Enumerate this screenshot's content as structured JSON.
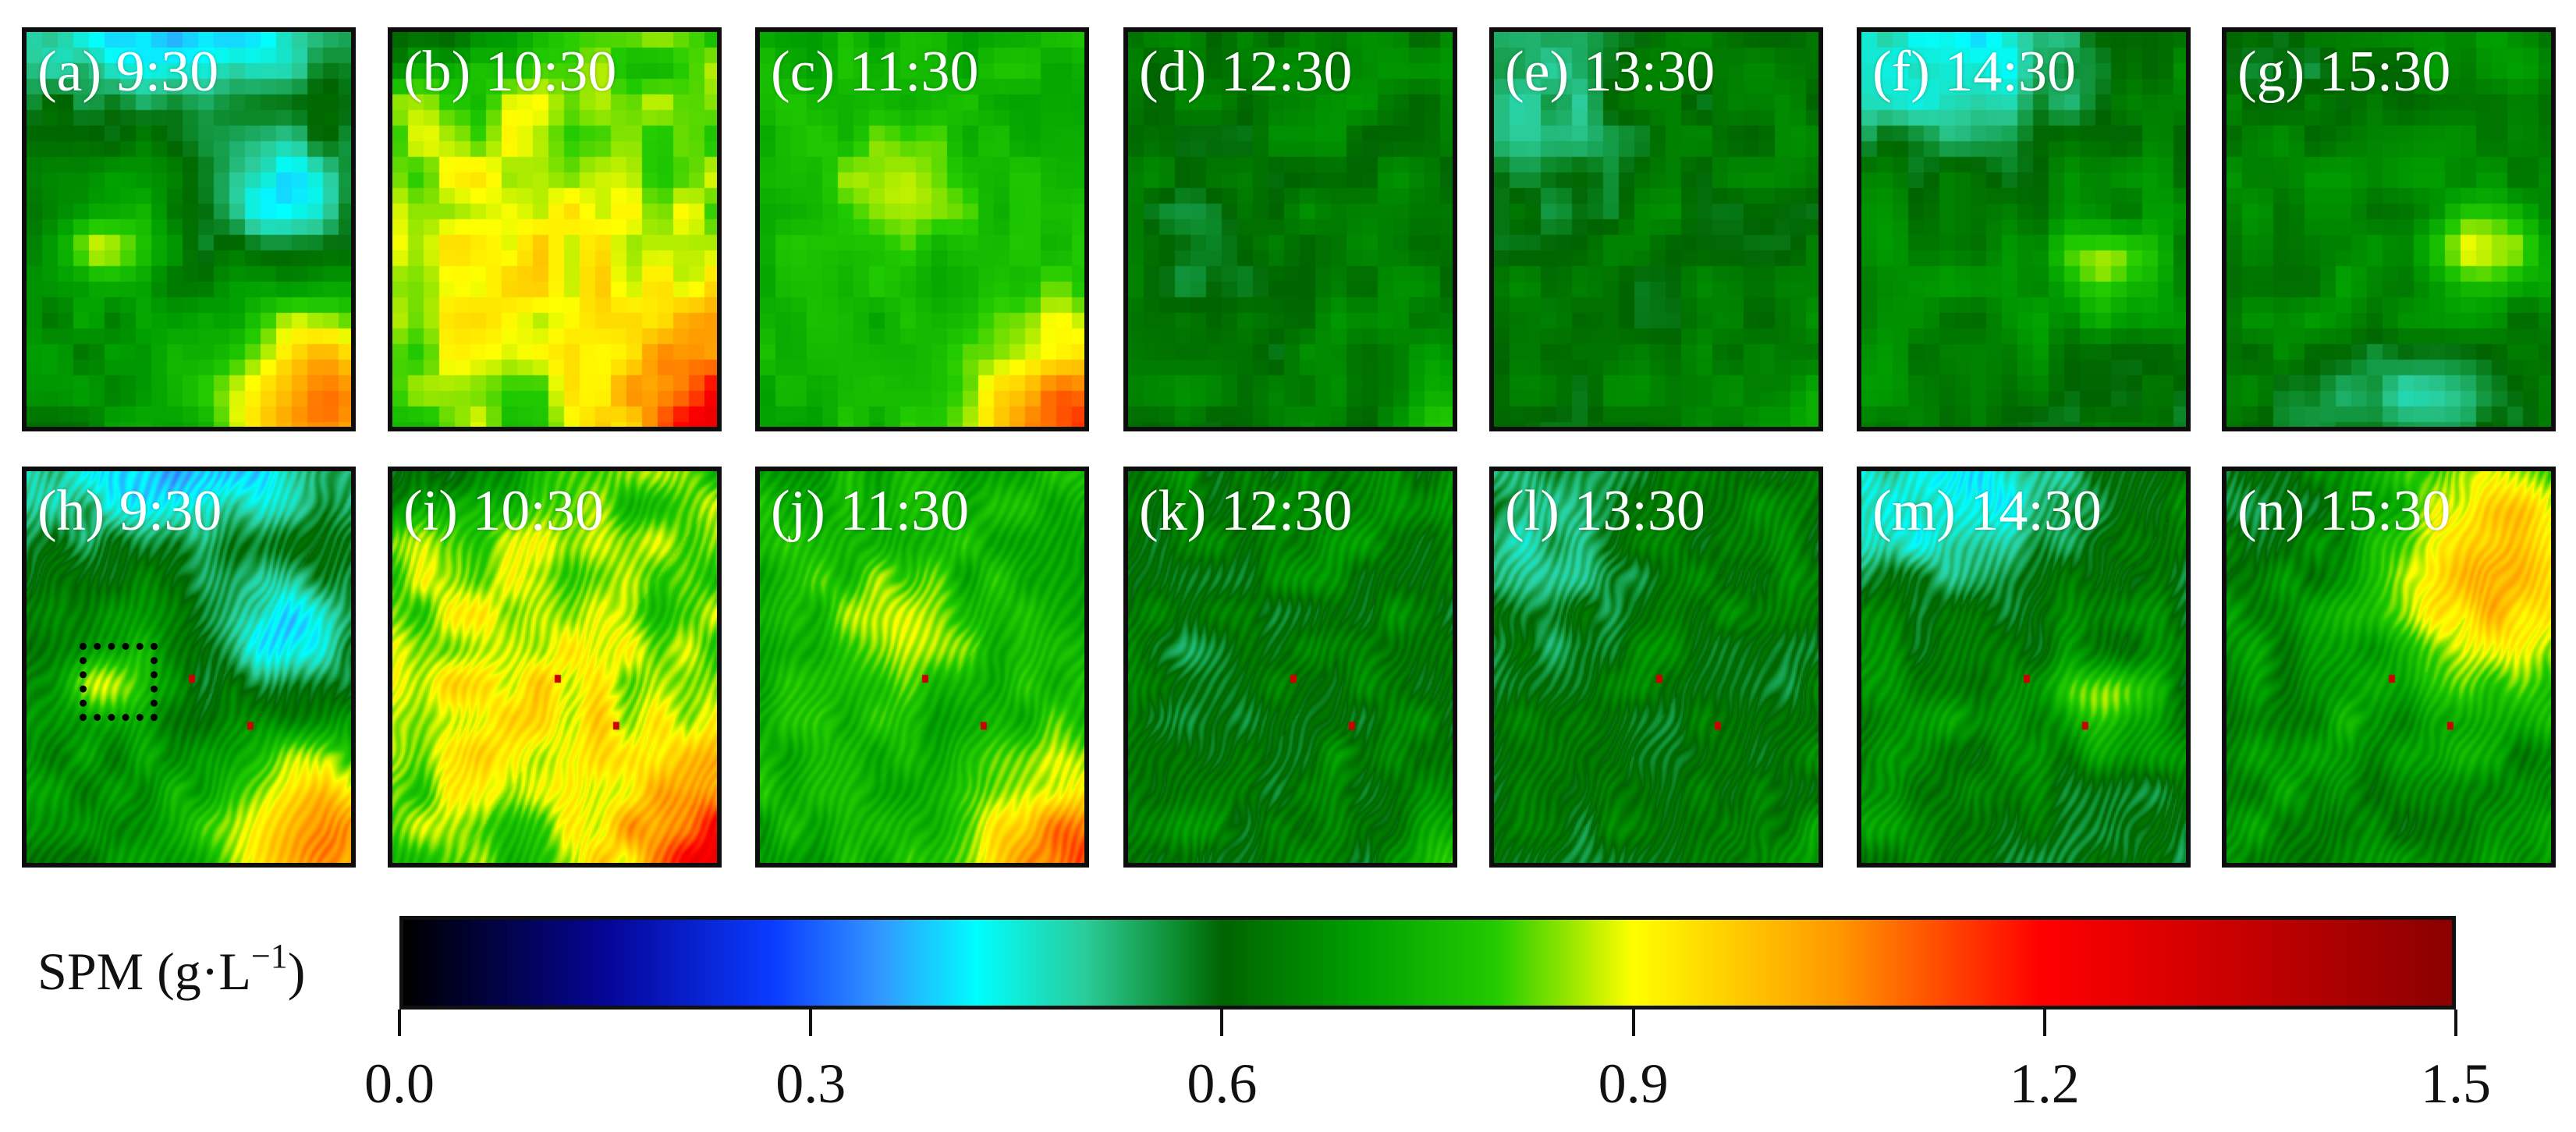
{
  "panels": [
    {
      "label": "(a) 9:30",
      "theme": "blue-diag",
      "sensor": "coarse",
      "show_roi": false
    },
    {
      "label": "(b) 10:30",
      "theme": "yellow",
      "sensor": "coarse",
      "show_roi": false
    },
    {
      "label": "(c) 11:30",
      "theme": "green-hot",
      "sensor": "coarse",
      "show_roi": false
    },
    {
      "label": "(d) 12:30",
      "theme": "dark",
      "sensor": "coarse",
      "show_roi": false
    },
    {
      "label": "(e) 13:30",
      "theme": "teal",
      "sensor": "coarse",
      "show_roi": false
    },
    {
      "label": "(f) 14:30",
      "theme": "cyan-top",
      "sensor": "coarse",
      "show_roi": false
    },
    {
      "label": "(g) 15:30",
      "theme": "cyan-bot",
      "sensor": "coarse",
      "show_roi": false
    },
    {
      "label": "(h) 9:30",
      "theme": "blue-diag",
      "sensor": "fine",
      "show_roi": true
    },
    {
      "label": "(i) 10:30",
      "theme": "yellow",
      "sensor": "fine",
      "show_roi": false
    },
    {
      "label": "(j) 11:30",
      "theme": "green-hot",
      "sensor": "fine",
      "show_roi": false
    },
    {
      "label": "(k) 12:30",
      "theme": "dark",
      "sensor": "fine",
      "show_roi": false
    },
    {
      "label": "(l) 13:30",
      "theme": "teal",
      "sensor": "fine",
      "show_roi": false
    },
    {
      "label": "(m) 14:30",
      "theme": "cyan-top",
      "sensor": "fine",
      "show_roi": false
    },
    {
      "label": "(n) 15:30",
      "theme": "orange-streak",
      "sensor": "fine",
      "show_roi": false
    }
  ],
  "colorbar": {
    "title": "SPM (g·L",
    "title_sup": "−1",
    "title_end": ")",
    "min": 0.0,
    "max": 1.5,
    "ticks": [
      "0.0",
      "0.3",
      "0.6",
      "0.9",
      "1.2",
      "1.5"
    ],
    "stops": [
      {
        "value": 0.0,
        "color": "#000000"
      },
      {
        "value": 0.15,
        "color": "#06069a"
      },
      {
        "value": 0.27,
        "color": "#0a3cff"
      },
      {
        "value": 0.35,
        "color": "#3399ff"
      },
      {
        "value": 0.42,
        "color": "#00ffff"
      },
      {
        "value": 0.5,
        "color": "#2bcc99"
      },
      {
        "value": 0.57,
        "color": "#0c8a2a"
      },
      {
        "value": 0.6,
        "color": "#006400"
      },
      {
        "value": 0.7,
        "color": "#00a000"
      },
      {
        "value": 0.8,
        "color": "#22cc00"
      },
      {
        "value": 0.9,
        "color": "#ffff00"
      },
      {
        "value": 1.05,
        "color": "#ff9900"
      },
      {
        "value": 1.2,
        "color": "#ff0000"
      },
      {
        "value": 1.5,
        "color": "#8b0000"
      }
    ]
  }
}
